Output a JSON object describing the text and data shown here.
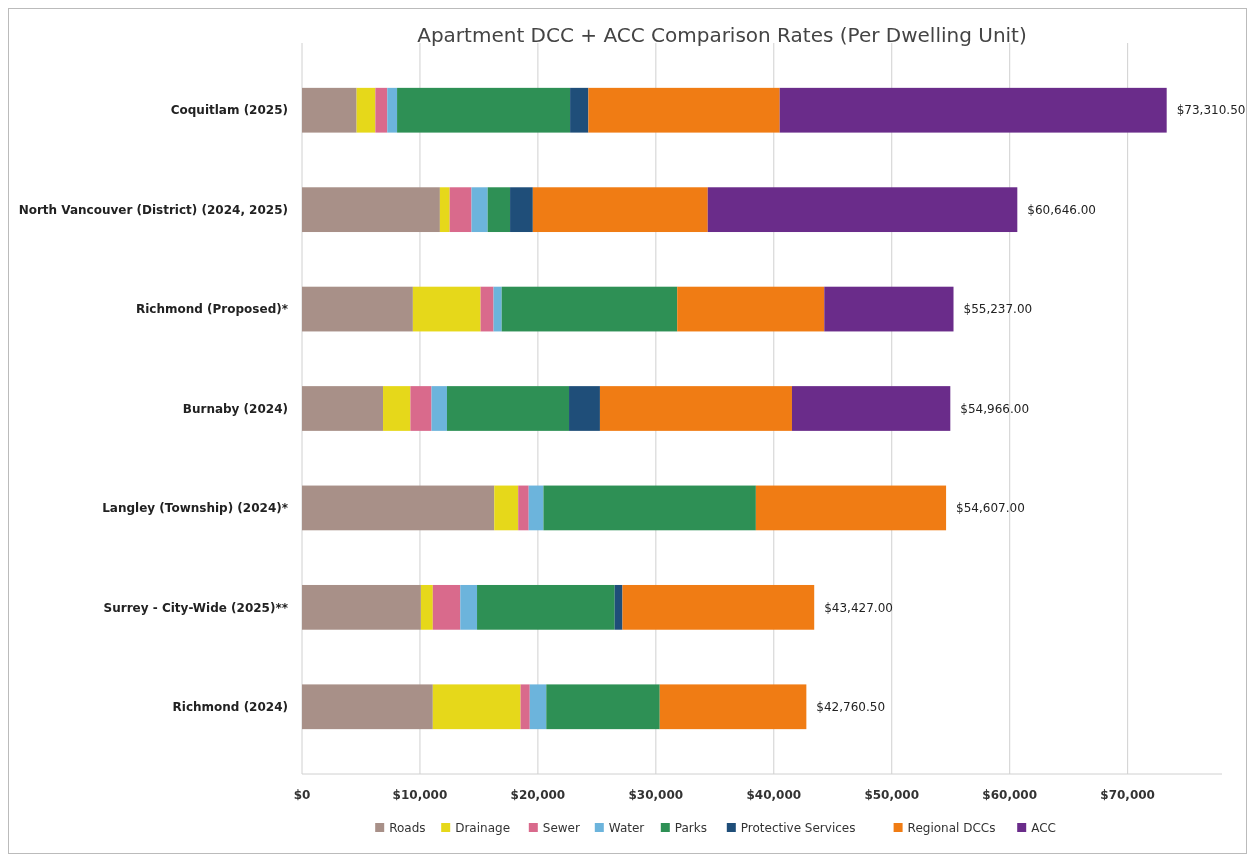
{
  "chart_data": {
    "type": "bar",
    "orientation": "horizontal",
    "stacked": true,
    "title": "Apartment DCC + ACC Comparison Rates (Per Dwelling Unit)",
    "categories": [
      "Coquitlam (2025)",
      "North Vancouver (District) (2024, 2025)",
      "Richmond (Proposed)*",
      "Burnaby (2024)",
      "Langley (Township) (2024)*",
      "Surrey - City-Wide (2025)**",
      "Richmond (2024)"
    ],
    "series": [
      {
        "name": "Roads",
        "color": "#a89088",
        "values": [
          4630,
          11690,
          9400,
          6870,
          16300,
          10080,
          11090
        ]
      },
      {
        "name": "Drainage",
        "color": "#e6d81a",
        "values": [
          1590,
          830,
          5740,
          2320,
          2030,
          1010,
          7440
        ]
      },
      {
        "name": "Sewer",
        "color": "#d96a8c",
        "values": [
          1010,
          1850,
          1100,
          1790,
          890,
          2330,
          780
        ]
      },
      {
        "name": "Water",
        "color": "#6cb4dc",
        "values": [
          830,
          1370,
          690,
          1310,
          1250,
          1420,
          1400
        ]
      },
      {
        "name": "Parks",
        "color": "#2e9055",
        "values": [
          14670,
          1900,
          14880,
          10350,
          18010,
          11670,
          9620
        ]
      },
      {
        "name": "Protective Services",
        "color": "#1f4e79",
        "values": [
          1550,
          1930,
          0,
          2620,
          0,
          660,
          0
        ]
      },
      {
        "name": "Regional DCCs",
        "color": "#f07c14",
        "values": [
          16220,
          14830,
          12470,
          16280,
          16127,
          16257,
          12430.5
        ]
      },
      {
        "name": "ACC",
        "color": "#6a2c8a",
        "values": [
          32810.5,
          26246,
          10957,
          13426,
          0,
          0,
          0
        ]
      }
    ],
    "totals": [
      "$73,310.50",
      "$60,646.00",
      "$55,237.00",
      "$54,966.00",
      "$54,607.00",
      "$43,427.00",
      "$42,760.50"
    ],
    "xlim": [
      0,
      78000
    ],
    "xticks": [
      {
        "value": 0,
        "label": "$0"
      },
      {
        "value": 10000,
        "label": "$10,000"
      },
      {
        "value": 20000,
        "label": "$20,000"
      },
      {
        "value": 30000,
        "label": "$30,000"
      },
      {
        "value": 40000,
        "label": "$40,000"
      },
      {
        "value": 50000,
        "label": "$50,000"
      },
      {
        "value": 60000,
        "label": "$60,000"
      },
      {
        "value": 70000,
        "label": "$70,000"
      }
    ],
    "grid": "x",
    "legend": "bottom"
  }
}
